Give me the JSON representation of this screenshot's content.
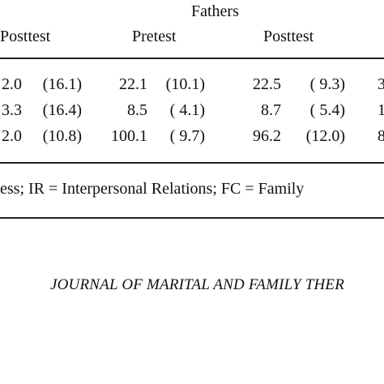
{
  "table": {
    "group_heading": "Fathers",
    "columns": [
      "Posttest",
      "Pretest",
      "Posttest"
    ],
    "rows": [
      [
        [
          "2.0",
          "(16.1)"
        ],
        [
          "22.1",
          "(10.1)"
        ],
        [
          "22.5",
          "( 9.3)"
        ],
        "3"
      ],
      [
        [
          "3.3",
          "(16.4)"
        ],
        [
          "8.5",
          "( 4.1)"
        ],
        [
          "8.7",
          "( 5.4)"
        ],
        "1"
      ],
      [
        [
          "2.0",
          "(10.8)"
        ],
        [
          "100.1",
          "( 9.7)"
        ],
        [
          "96.2",
          "(12.0)"
        ],
        "8"
      ]
    ],
    "note": "ess; IR = Interpersonal Relations; FC = Family"
  },
  "footer": "JOURNAL OF MARITAL AND FAMILY THER"
}
